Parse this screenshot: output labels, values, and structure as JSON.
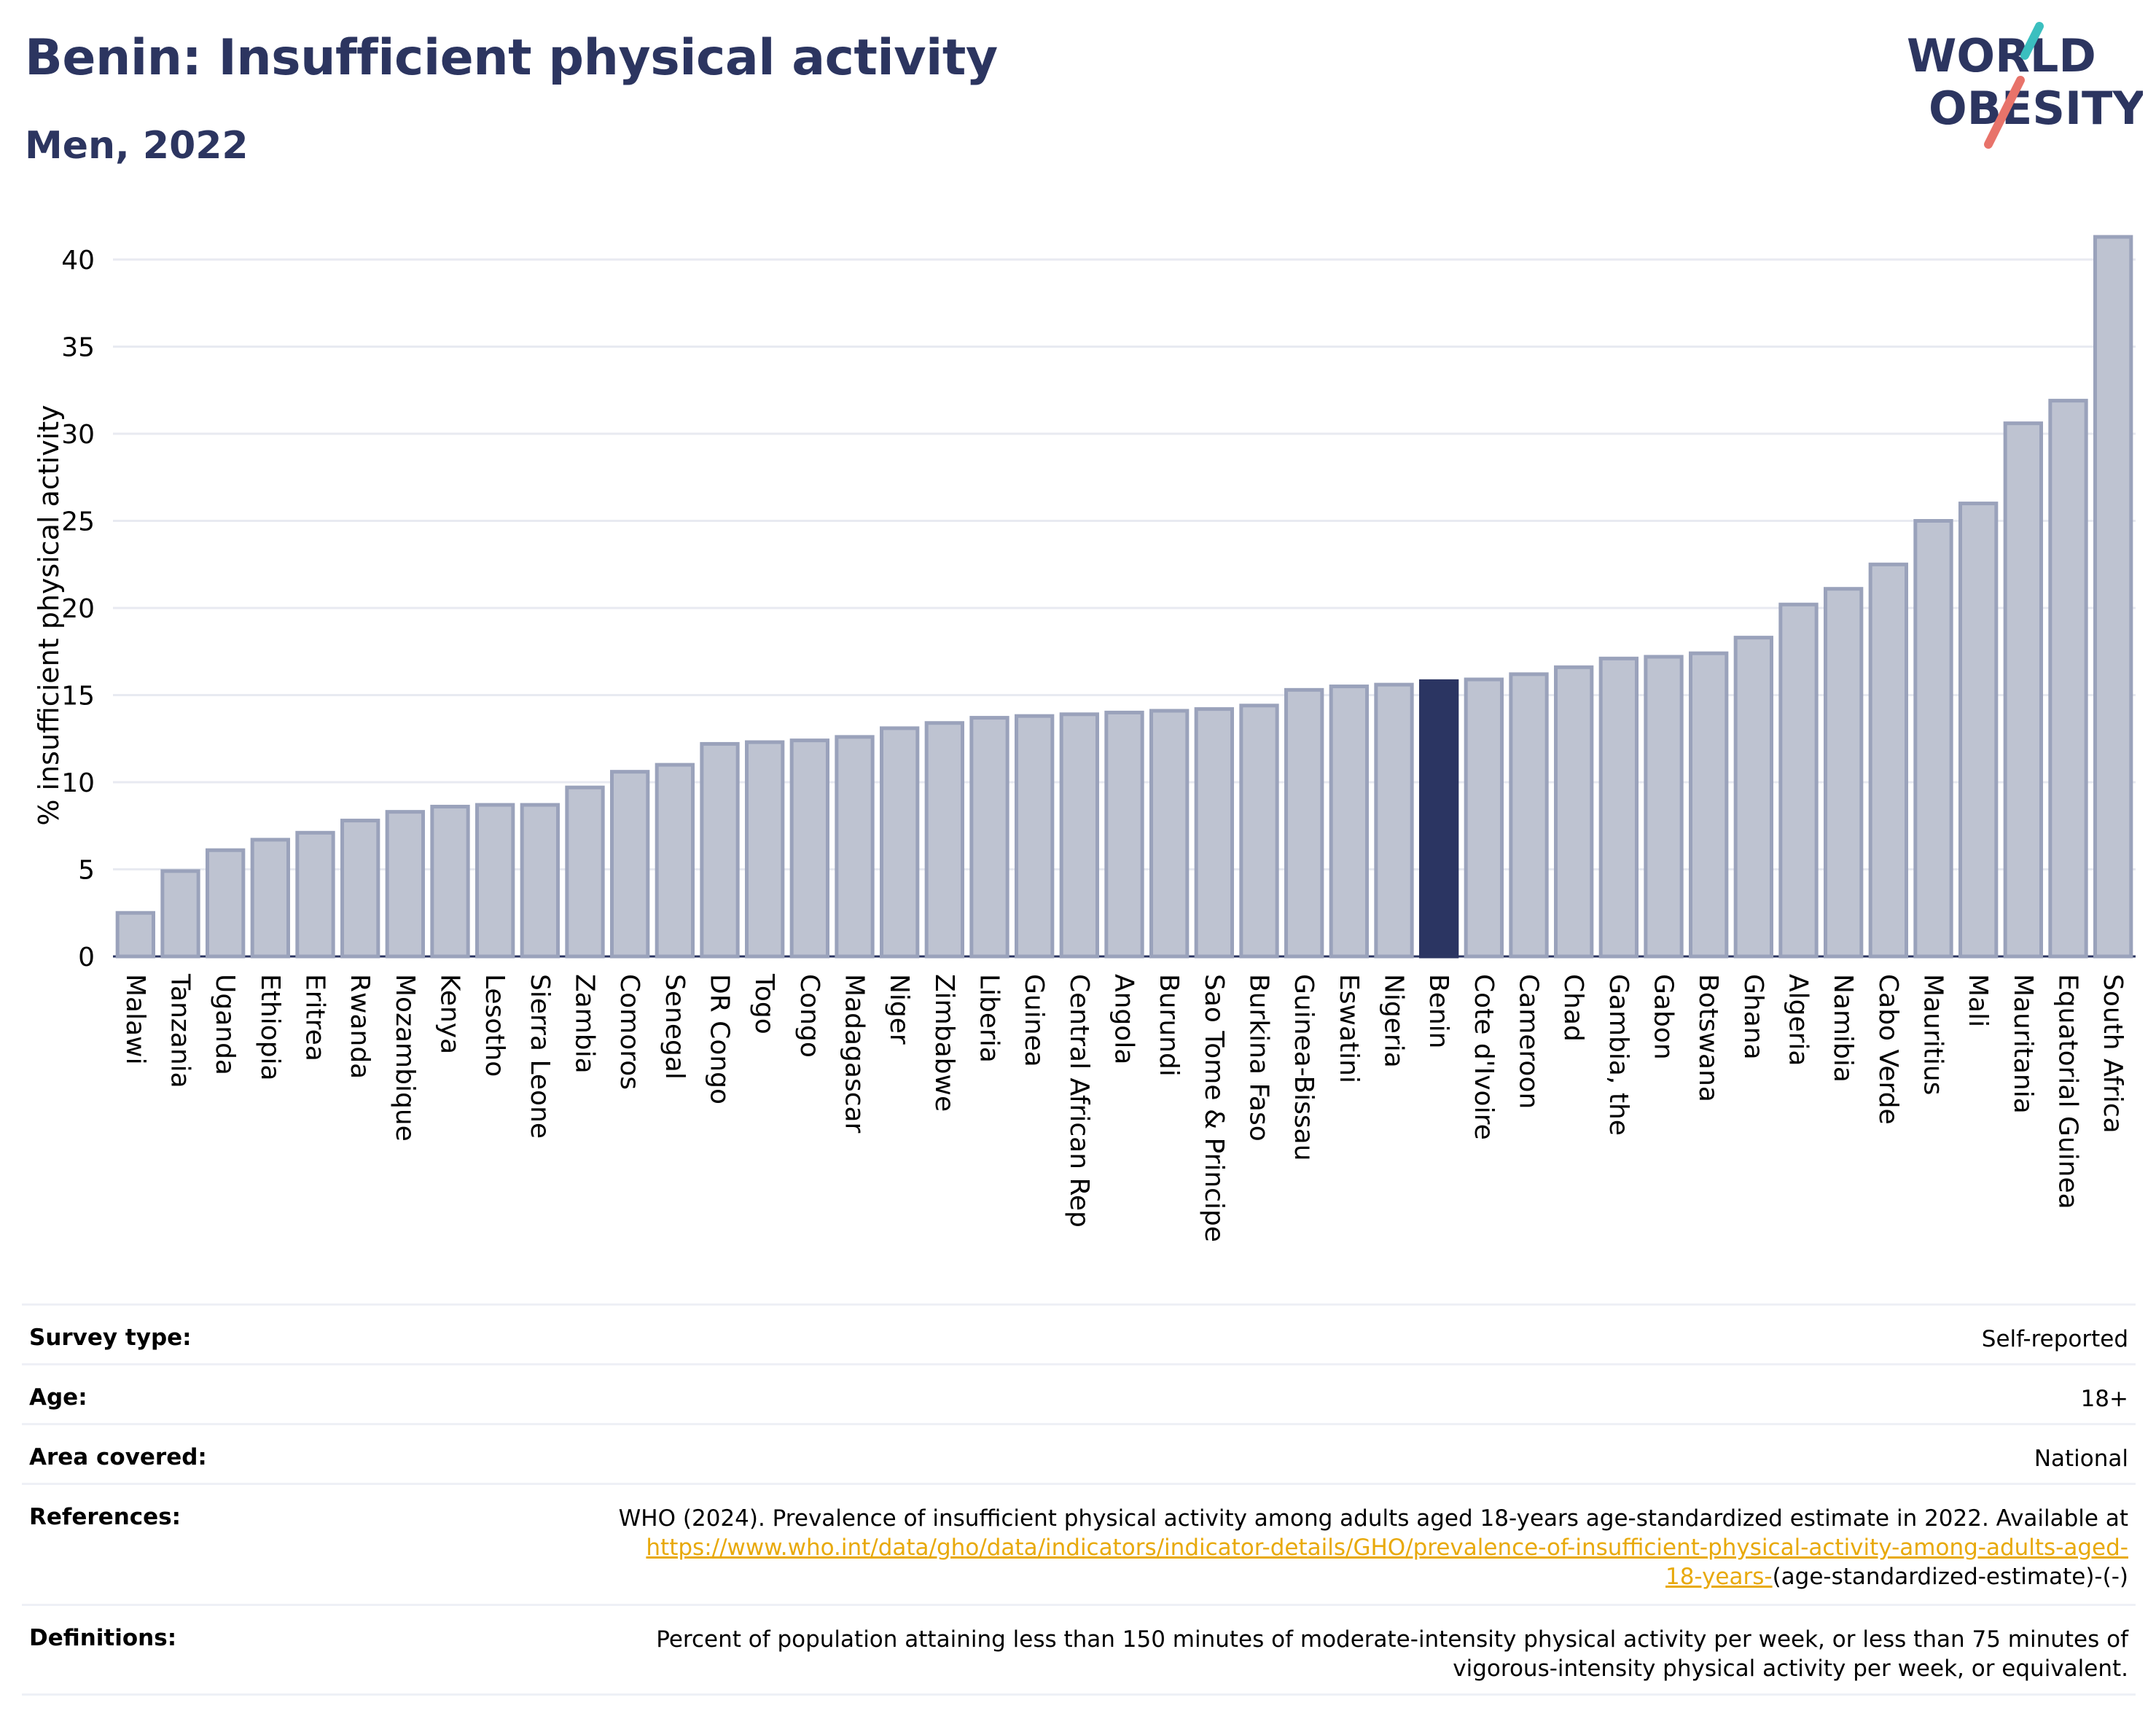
{
  "title": "Benin: Insufficient physical activity",
  "subtitle": "Men, 2022",
  "logo": {
    "line1": "WORLD",
    "line2": "OBESITY",
    "accent_colors": [
      "#3bbfbf",
      "#e8736a"
    ]
  },
  "colors": {
    "bar": "#bec3d1",
    "bar_stroke": "#9aa2bb",
    "highlight": "#2b3562",
    "grid": "#e8eaf1",
    "text": "#000000"
  },
  "chart_data": {
    "type": "bar",
    "ylabel": "% insufficient physical activity",
    "xlabel": "",
    "ylim": [
      0,
      42
    ],
    "yticks": [
      0,
      5,
      10,
      15,
      20,
      25,
      30,
      35,
      40
    ],
    "highlight": "Benin",
    "categories": [
      "Malawi",
      "Tanzania",
      "Uganda",
      "Ethiopia",
      "Eritrea",
      "Rwanda",
      "Mozambique",
      "Kenya",
      "Lesotho",
      "Sierra Leone",
      "Zambia",
      "Comoros",
      "Senegal",
      "DR Congo",
      "Togo",
      "Congo",
      "Madagascar",
      "Niger",
      "Zimbabwe",
      "Liberia",
      "Guinea",
      "Central African Rep",
      "Angola",
      "Burundi",
      "Sao Tome & Principe",
      "Burkina Faso",
      "Guinea-Bissau",
      "Eswatini",
      "Nigeria",
      "Benin",
      "Cote d'Ivoire",
      "Cameroon",
      "Chad",
      "Gambia, the",
      "Gabon",
      "Botswana",
      "Ghana",
      "Algeria",
      "Namibia",
      "Cabo Verde",
      "Mauritius",
      "Mali",
      "Mauritania",
      "Equatorial Guinea",
      "South Africa"
    ],
    "values": [
      2.5,
      4.9,
      6.1,
      6.7,
      7.1,
      7.8,
      8.3,
      8.6,
      8.7,
      8.7,
      9.7,
      10.6,
      11.0,
      12.2,
      12.3,
      12.4,
      12.6,
      13.1,
      13.4,
      13.7,
      13.8,
      13.9,
      14.0,
      14.1,
      14.2,
      14.4,
      15.3,
      15.5,
      15.6,
      15.8,
      15.9,
      16.2,
      16.6,
      17.1,
      17.2,
      17.4,
      18.3,
      20.2,
      21.1,
      22.5,
      25.0,
      26.0,
      30.6,
      31.9,
      41.3
    ]
  },
  "meta": {
    "survey_type": {
      "label": "Survey type:",
      "value": "Self-reported"
    },
    "age": {
      "label": "Age:",
      "value": "18+"
    },
    "area": {
      "label": "Area covered:",
      "value": "National"
    },
    "references": {
      "label": "References:",
      "text": "WHO (2024). Prevalence of insufficient physical activity among adults aged 18-years age-standardized estimate in 2022. Available at",
      "link_a": "https://www.who.int/data/gho/data/indicators/indicator-details/GHO/prevalence-of-insufficient-physical-activity-among-adults-aged-",
      "link_b": "18-years-",
      "suffix": "(age-standardized-estimate)-(-)"
    },
    "definitions": {
      "label": "Definitions:",
      "line1": "Percent of population attaining less than 150 minutes of moderate-intensity physical activity per week, or less than 75 minutes of",
      "line2": "vigorous-intensity physical activity per week, or equivalent."
    }
  }
}
